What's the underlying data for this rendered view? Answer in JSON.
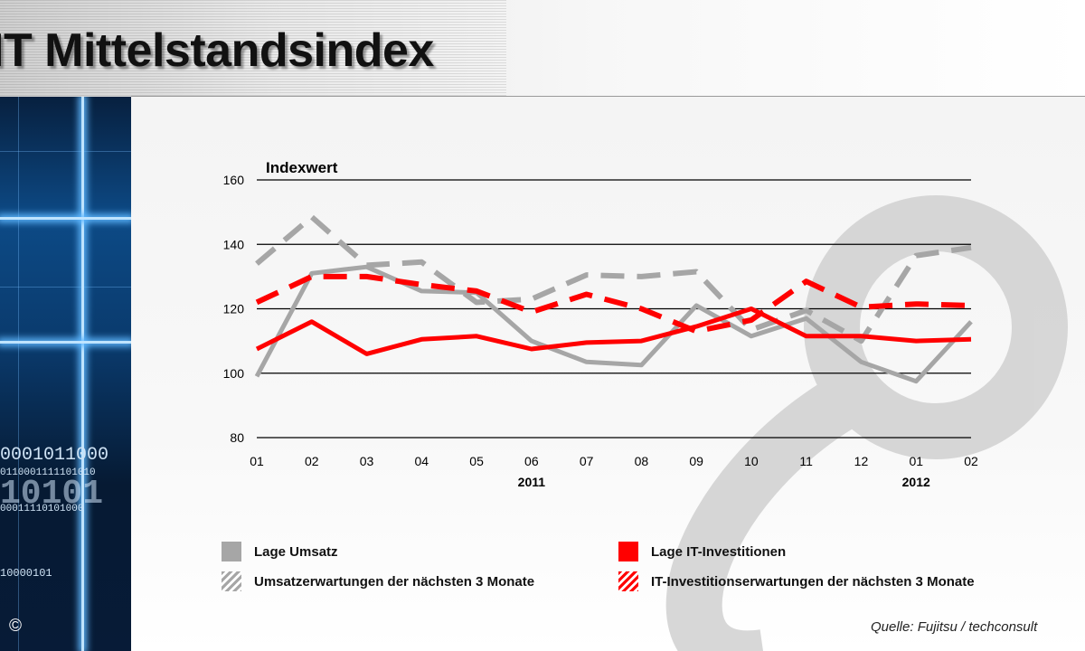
{
  "title": "IT Mittelstandsindex",
  "copyright": "©",
  "source": "Quelle: Fujitsu / techconsult",
  "sidebar_binary": [
    "0001011000",
    "0110001111101010",
    "10101",
    "00011110101000",
    "10000101"
  ],
  "colors": {
    "gray": "#a6a6a6",
    "red": "#ff0000",
    "grid": "#000000"
  },
  "chart_data": {
    "type": "line",
    "ylabel": "Indexwert",
    "ylim": [
      80,
      160
    ],
    "yticks": [
      80,
      100,
      120,
      140,
      160
    ],
    "grid": true,
    "categories": [
      "01",
      "02",
      "03",
      "04",
      "05",
      "06",
      "07",
      "08",
      "09",
      "10",
      "11",
      "12",
      "01",
      "02"
    ],
    "year_labels": [
      {
        "label": "2011",
        "at_index": 5
      },
      {
        "label": "2012",
        "at_index": 12
      }
    ],
    "legend_position": "bottom",
    "series": [
      {
        "name": "Lage Umsatz",
        "color": "#a6a6a6",
        "style": "solid",
        "values": [
          99,
          131,
          133,
          125.5,
          125,
          110,
          103.5,
          102.5,
          121,
          111.5,
          117,
          103.5,
          97.5,
          116
        ]
      },
      {
        "name": "Umsatzerwartungen der nächsten 3 Monate",
        "color": "#a6a6a6",
        "style": "dashed",
        "values": [
          134,
          148.5,
          133.5,
          134.5,
          122,
          123,
          130.5,
          130,
          131.5,
          113.5,
          119.5,
          110,
          136.5,
          139
        ]
      },
      {
        "name": "Lage IT-Investitionen",
        "color": "#ff0000",
        "style": "solid",
        "values": [
          107.5,
          116,
          106,
          110.5,
          111.5,
          107.5,
          109.5,
          110,
          114.5,
          120,
          111.5,
          111.5,
          110,
          110.5
        ]
      },
      {
        "name": "IT-Investitionserwartungen der nächsten 3 Monate",
        "color": "#ff0000",
        "style": "dashed",
        "values": [
          122,
          130,
          130,
          127.5,
          125.5,
          119,
          124.5,
          120,
          113,
          116.5,
          128.5,
          120.5,
          121.5,
          121
        ]
      }
    ]
  }
}
